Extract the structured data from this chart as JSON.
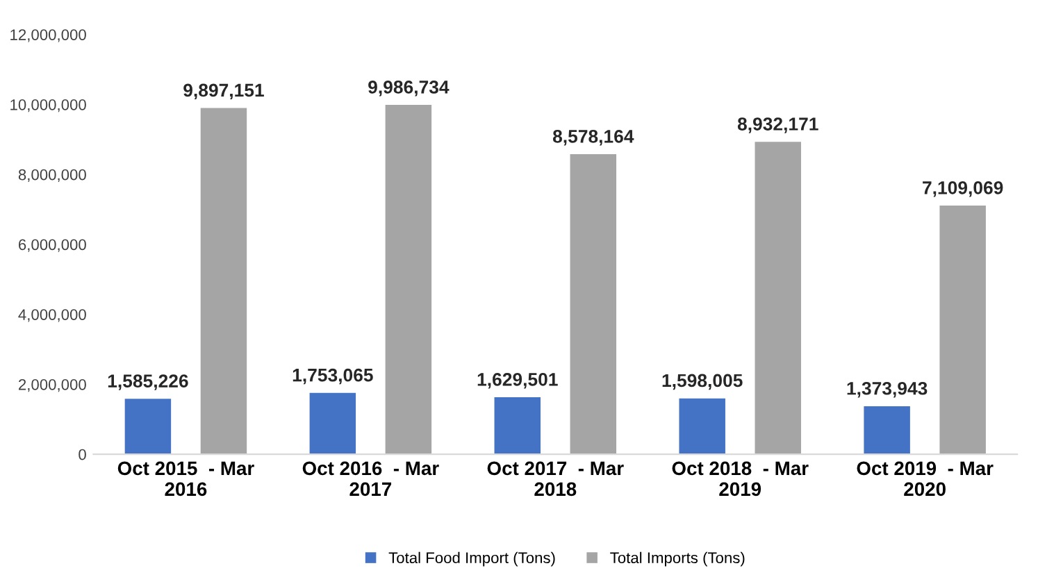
{
  "chart_data": {
    "type": "bar",
    "categories": [
      "Oct 2015  - Mar\n2016",
      "Oct 2016  - Mar\n2017",
      "Oct 2017  - Mar\n2018",
      "Oct 2018  - Mar\n2019",
      "Oct 2019  - Mar\n2020"
    ],
    "series": [
      {
        "name": "Total Food Import (Tons)",
        "color": "#4472c4",
        "values": [
          1585226,
          1753065,
          1629501,
          1598005,
          1373943
        ],
        "value_labels": [
          "1,585,226",
          "1,753,065",
          "1,629,501",
          "1,598,005",
          "1,373,943"
        ]
      },
      {
        "name": "Total Imports (Tons)",
        "color": "#a5a5a5",
        "values": [
          9897151,
          9986734,
          8578164,
          8932171,
          7109069
        ],
        "value_labels": [
          "9,897,151",
          "9,986,734",
          "8,578,164",
          "8,932,171",
          "7,109,069"
        ]
      }
    ],
    "ylim": [
      0,
      12000000
    ],
    "yticks": [
      0,
      {
        "value": 2000000,
        "label": "2,000,000"
      },
      {
        "value": 4000000,
        "label": "4,000,000"
      },
      {
        "value": 6000000,
        "label": "6,000,000"
      },
      {
        "value": 8000000,
        "label": "8,000,000"
      },
      {
        "value": 10000000,
        "label": "10,000,000"
      },
      {
        "value": 12000000,
        "label": "12,000,000"
      }
    ],
    "grid": false,
    "legend": "bottom"
  }
}
